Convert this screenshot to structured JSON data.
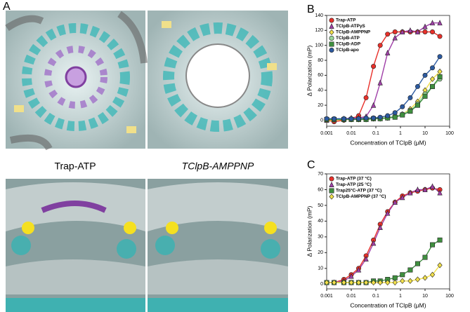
{
  "panel_a": {
    "label": "A",
    "captions": [
      "Trap-ATP",
      "TClpB-AMPPNP"
    ]
  },
  "chart_data": [
    {
      "type": "line",
      "panel_label": "B",
      "xlabel": "Concentration of TClpB (μM)",
      "ylabel": "Δ Polarization (mP)",
      "log_x": true,
      "xlim": [
        0.001,
        100
      ],
      "xticks": [
        0.001,
        0.01,
        0.1,
        1,
        10,
        100
      ],
      "ylim": [
        -8,
        140
      ],
      "yticks": [
        0,
        20,
        40,
        60,
        80,
        100,
        120,
        140
      ],
      "legend": "upper left",
      "x": [
        0.001,
        0.002,
        0.005,
        0.01,
        0.02,
        0.04,
        0.08,
        0.15,
        0.3,
        0.6,
        1.2,
        2.5,
        5,
        10,
        20,
        40
      ],
      "series": [
        {
          "name": "Trap-ATP",
          "color": "#e8302a",
          "marker": "circle",
          "values": [
            0,
            -2,
            0,
            2,
            6,
            30,
            72,
            100,
            115,
            118,
            118,
            118,
            118,
            118,
            118,
            112
          ]
        },
        {
          "name": "TClpB-ATPγS",
          "color": "#a040a8",
          "marker": "triangle",
          "values": [
            0,
            1,
            2,
            3,
            3,
            5,
            20,
            50,
            90,
            110,
            118,
            120,
            118,
            125,
            130,
            130
          ]
        },
        {
          "name": "TClpB-AMPPNP",
          "color": "#f2e04a",
          "marker": "diamond",
          "values": [
            0,
            0,
            1,
            1,
            1,
            1,
            2,
            2,
            3,
            5,
            8,
            15,
            25,
            40,
            55,
            65
          ]
        },
        {
          "name": "TClpB-ATP",
          "color": "#9ad79a",
          "marker": "circle",
          "values": [
            2,
            2,
            2,
            2,
            2,
            2,
            3,
            3,
            4,
            5,
            8,
            13,
            22,
            35,
            45,
            55
          ]
        },
        {
          "name": "TClpB-ADP",
          "color": "#3f8f3f",
          "marker": "square",
          "values": [
            1,
            1,
            1,
            1,
            1,
            1,
            2,
            2,
            3,
            4,
            7,
            12,
            20,
            32,
            45,
            58
          ]
        },
        {
          "name": "TClpB-apo",
          "color": "#2c5aa0",
          "marker": "circle",
          "values": [
            2,
            2,
            2,
            2,
            2,
            3,
            3,
            4,
            6,
            10,
            18,
            30,
            45,
            60,
            70,
            85
          ]
        }
      ]
    },
    {
      "type": "line",
      "panel_label": "C",
      "xlabel": "Concentration of TClpB (μM)",
      "ylabel": "Δ Polarization (mP)",
      "log_x": true,
      "xlim": [
        0.001,
        100
      ],
      "xticks": [
        0.001,
        0.01,
        0.1,
        1,
        10,
        100
      ],
      "ylim": [
        -3,
        70
      ],
      "yticks": [
        0,
        10,
        20,
        30,
        40,
        50,
        60,
        70
      ],
      "legend": "upper left",
      "x": [
        0.001,
        0.002,
        0.005,
        0.01,
        0.02,
        0.04,
        0.08,
        0.15,
        0.3,
        0.6,
        1.2,
        2.5,
        5,
        10,
        20,
        40
      ],
      "series": [
        {
          "name": "Trap-ATP (37 °C)",
          "color": "#e8302a",
          "marker": "circle",
          "values": [
            1,
            1,
            3,
            6,
            10,
            18,
            28,
            38,
            46,
            52,
            56,
            58,
            59,
            60,
            61,
            60
          ]
        },
        {
          "name": "Trap-ATP (25 °C)",
          "color": "#a040a8",
          "marker": "triangle",
          "values": [
            1,
            1,
            2,
            5,
            9,
            16,
            26,
            36,
            45,
            52,
            55,
            58,
            60,
            60,
            62,
            58
          ]
        },
        {
          "name": "Trap25°C-ATP (37 °C)",
          "color": "#3f8f3f",
          "marker": "square",
          "values": [
            1,
            1,
            1,
            1,
            1,
            1,
            2,
            2,
            3,
            4,
            6,
            9,
            13,
            17,
            25,
            28
          ]
        },
        {
          "name": "TClpB-AMPPNP (37 °C)",
          "color": "#f2e04a",
          "marker": "diamond",
          "values": [
            1,
            1,
            1,
            1,
            1,
            1,
            1,
            1,
            1,
            1,
            2,
            2,
            3,
            4,
            6,
            12
          ]
        }
      ]
    }
  ]
}
